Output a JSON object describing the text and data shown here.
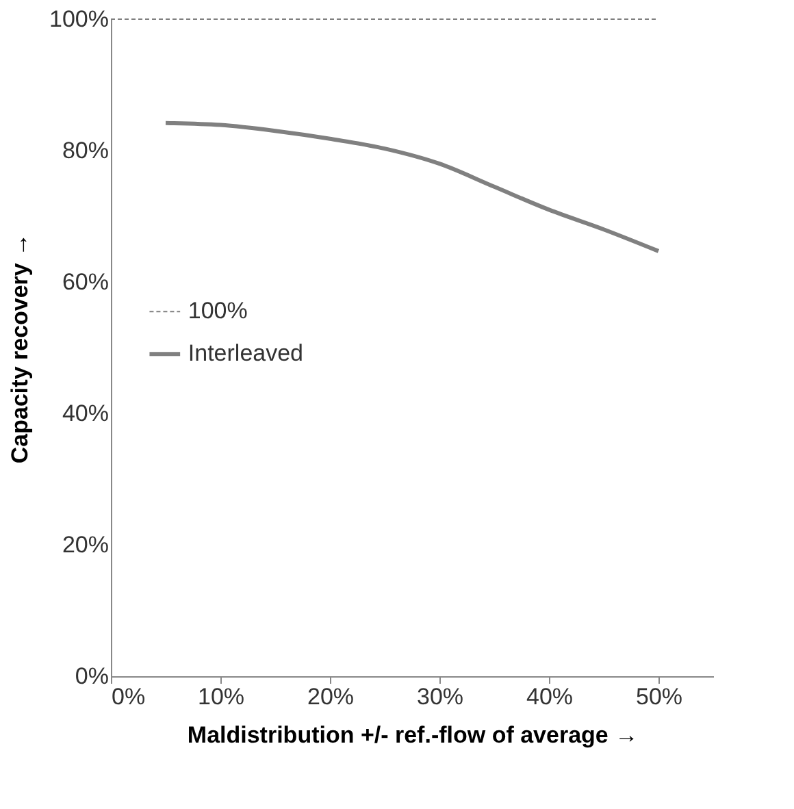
{
  "chart_data": {
    "type": "line",
    "xlabel": "Maldistribution +/- ref.-flow of average  →",
    "ylabel": "Capacity recovery  →",
    "xlim": [
      0,
      55
    ],
    "ylim": [
      0,
      100
    ],
    "xticks": [
      {
        "value": 0,
        "label": "0%"
      },
      {
        "value": 10,
        "label": "10%"
      },
      {
        "value": 20,
        "label": "20%"
      },
      {
        "value": 30,
        "label": "30%"
      },
      {
        "value": 40,
        "label": "40%"
      },
      {
        "value": 50,
        "label": "50%"
      }
    ],
    "yticks": [
      {
        "value": 0,
        "label": "0%"
      },
      {
        "value": 20,
        "label": "20%"
      },
      {
        "value": 40,
        "label": "40%"
      },
      {
        "value": 60,
        "label": "60%"
      },
      {
        "value": 80,
        "label": "80%"
      },
      {
        "value": 100,
        "label": "100%"
      }
    ],
    "series": [
      {
        "name": "100%",
        "color": "#7f7f7f",
        "line_style": "dashed",
        "x": [
          0,
          50
        ],
        "values": [
          100,
          100
        ]
      },
      {
        "name": "Interleaved",
        "color": "#808080",
        "line_style": "solid",
        "x": [
          5,
          10,
          15,
          20,
          25,
          30,
          35,
          40,
          45,
          50
        ],
        "values": [
          84.2,
          83.9,
          83,
          81.8,
          80.3,
          78,
          74.5,
          71,
          68,
          64.7
        ]
      }
    ],
    "grid": false,
    "legend": "left",
    "marker": "none"
  }
}
